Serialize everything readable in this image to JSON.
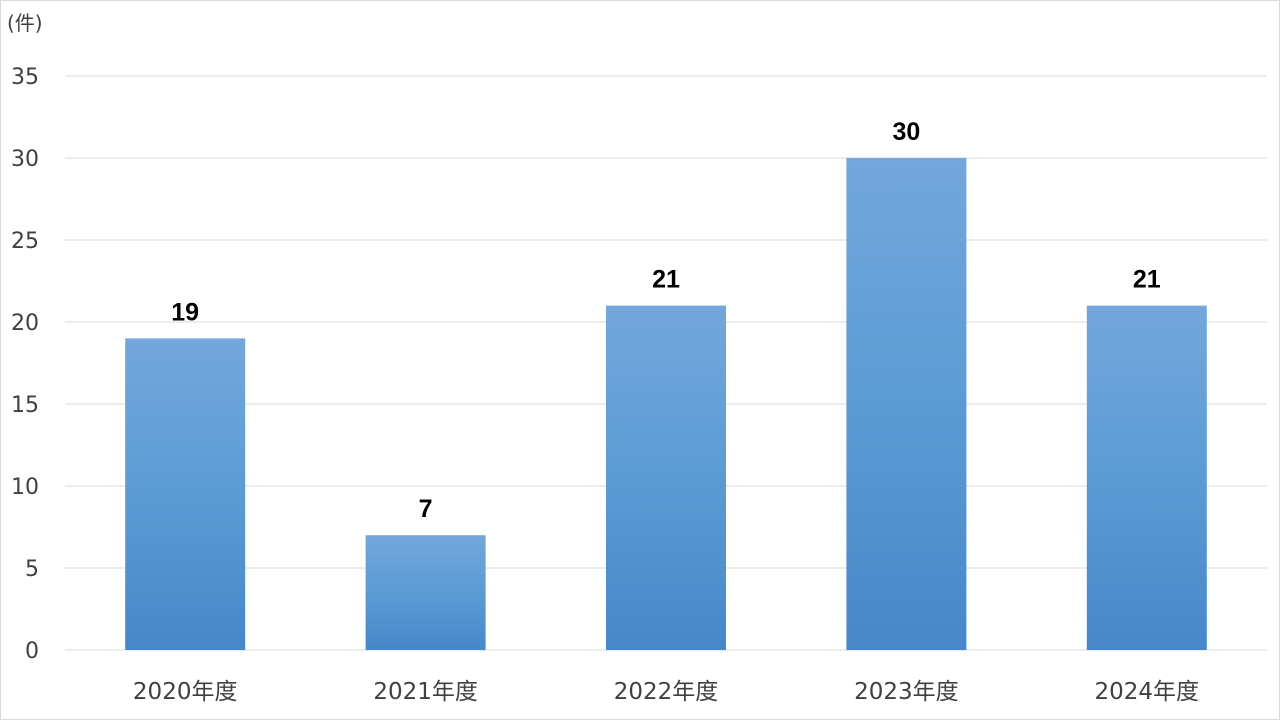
{
  "chart_data": {
    "type": "bar",
    "categories": [
      "2020年度",
      "2021年度",
      "2022年度",
      "2023年度",
      "2024年度"
    ],
    "values": [
      19,
      7,
      21,
      30,
      21
    ],
    "y_unit": "(件)",
    "ylim": [
      0,
      35
    ],
    "ytick_step": 5,
    "yticks": [
      "0",
      "5",
      "10",
      "15",
      "20",
      "25",
      "30",
      "35"
    ],
    "data_labels": [
      "19",
      "7",
      "21",
      "30",
      "21"
    ],
    "grid": true,
    "legend": "none",
    "bar_color_top": "#74a7db",
    "bar_color_mid": "#5b9bd5",
    "bar_color_bottom": "#4687c9"
  }
}
